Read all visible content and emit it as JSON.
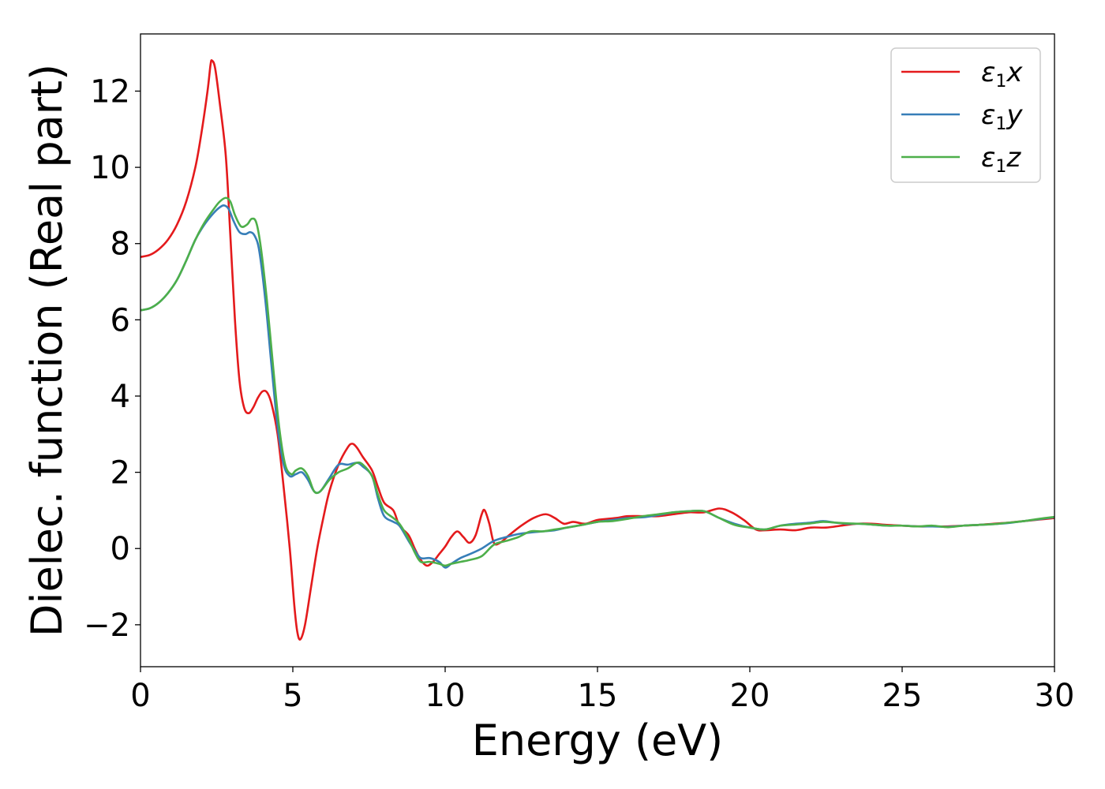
{
  "chart_data": {
    "type": "line",
    "title": "",
    "xlabel": "Energy (eV)",
    "ylabel": "Dielec. function (Real part)",
    "xlim": [
      0,
      30
    ],
    "ylim": [
      -3.1,
      13.5
    ],
    "xticks": [
      0,
      5,
      10,
      15,
      20,
      25,
      30
    ],
    "xtick_labels": [
      "0",
      "5",
      "10",
      "15",
      "20",
      "25",
      "30"
    ],
    "yticks": [
      -2,
      0,
      2,
      4,
      6,
      8,
      10,
      12
    ],
    "ytick_labels": [
      "−2",
      "0",
      "2",
      "4",
      "6",
      "8",
      "10",
      "12"
    ],
    "grid": false,
    "legend_position": "top-right",
    "series": [
      {
        "name": "ε₁x",
        "legend": {
          "symbol": "ε",
          "sub": "1",
          "axis": "x"
        },
        "color": "#e41a1c",
        "points": [
          [
            0,
            7.65
          ],
          [
            0.3,
            7.7
          ],
          [
            0.6,
            7.85
          ],
          [
            0.9,
            8.1
          ],
          [
            1.2,
            8.5
          ],
          [
            1.5,
            9.1
          ],
          [
            1.8,
            10.0
          ],
          [
            2.0,
            10.9
          ],
          [
            2.2,
            12.0
          ],
          [
            2.3,
            12.7
          ],
          [
            2.35,
            12.8
          ],
          [
            2.45,
            12.6
          ],
          [
            2.6,
            11.7
          ],
          [
            2.8,
            10.3
          ],
          [
            2.95,
            8.2
          ],
          [
            3.1,
            6.0
          ],
          [
            3.25,
            4.4
          ],
          [
            3.4,
            3.7
          ],
          [
            3.55,
            3.55
          ],
          [
            3.7,
            3.7
          ],
          [
            3.85,
            3.95
          ],
          [
            4.0,
            4.12
          ],
          [
            4.15,
            4.1
          ],
          [
            4.3,
            3.8
          ],
          [
            4.5,
            3.0
          ],
          [
            4.7,
            1.6
          ],
          [
            4.9,
            0.0
          ],
          [
            5.05,
            -1.5
          ],
          [
            5.15,
            -2.2
          ],
          [
            5.25,
            -2.38
          ],
          [
            5.4,
            -2.0
          ],
          [
            5.6,
            -1.0
          ],
          [
            5.8,
            0.0
          ],
          [
            6.0,
            0.8
          ],
          [
            6.2,
            1.5
          ],
          [
            6.5,
            2.2
          ],
          [
            6.8,
            2.65
          ],
          [
            6.95,
            2.75
          ],
          [
            7.1,
            2.65
          ],
          [
            7.3,
            2.4
          ],
          [
            7.6,
            2.05
          ],
          [
            7.8,
            1.6
          ],
          [
            8.0,
            1.2
          ],
          [
            8.3,
            1.0
          ],
          [
            8.5,
            0.6
          ],
          [
            8.8,
            0.35
          ],
          [
            9.0,
            0.0
          ],
          [
            9.2,
            -0.3
          ],
          [
            9.4,
            -0.45
          ],
          [
            9.6,
            -0.35
          ],
          [
            9.8,
            -0.15
          ],
          [
            10.0,
            0.05
          ],
          [
            10.2,
            0.3
          ],
          [
            10.4,
            0.45
          ],
          [
            10.6,
            0.3
          ],
          [
            10.8,
            0.15
          ],
          [
            11.0,
            0.35
          ],
          [
            11.2,
            0.9
          ],
          [
            11.3,
            1.0
          ],
          [
            11.45,
            0.65
          ],
          [
            11.6,
            0.15
          ],
          [
            11.8,
            0.15
          ],
          [
            12.1,
            0.35
          ],
          [
            12.5,
            0.6
          ],
          [
            12.9,
            0.8
          ],
          [
            13.3,
            0.9
          ],
          [
            13.6,
            0.8
          ],
          [
            13.9,
            0.65
          ],
          [
            14.2,
            0.7
          ],
          [
            14.6,
            0.65
          ],
          [
            15.0,
            0.75
          ],
          [
            15.6,
            0.8
          ],
          [
            16.0,
            0.85
          ],
          [
            16.5,
            0.85
          ],
          [
            17.0,
            0.85
          ],
          [
            17.5,
            0.9
          ],
          [
            18.0,
            0.95
          ],
          [
            18.5,
            0.95
          ],
          [
            19.0,
            1.05
          ],
          [
            19.4,
            0.95
          ],
          [
            19.8,
            0.75
          ],
          [
            20.2,
            0.5
          ],
          [
            20.5,
            0.48
          ],
          [
            21.0,
            0.5
          ],
          [
            21.5,
            0.48
          ],
          [
            22.0,
            0.55
          ],
          [
            22.5,
            0.55
          ],
          [
            23.0,
            0.6
          ],
          [
            23.5,
            0.65
          ],
          [
            24.0,
            0.65
          ],
          [
            24.5,
            0.62
          ],
          [
            25.0,
            0.6
          ],
          [
            25.5,
            0.58
          ],
          [
            26.0,
            0.58
          ],
          [
            26.5,
            0.58
          ],
          [
            27.0,
            0.6
          ],
          [
            27.5,
            0.62
          ],
          [
            28.0,
            0.65
          ],
          [
            28.5,
            0.68
          ],
          [
            29.0,
            0.72
          ],
          [
            29.5,
            0.76
          ],
          [
            30.0,
            0.8
          ]
        ]
      },
      {
        "name": "ε₁y",
        "legend": {
          "symbol": "ε",
          "sub": "1",
          "axis": "y"
        },
        "color": "#377eb8",
        "points": [
          [
            0,
            6.25
          ],
          [
            0.3,
            6.3
          ],
          [
            0.6,
            6.45
          ],
          [
            0.9,
            6.7
          ],
          [
            1.2,
            7.05
          ],
          [
            1.5,
            7.55
          ],
          [
            1.8,
            8.1
          ],
          [
            2.1,
            8.5
          ],
          [
            2.4,
            8.8
          ],
          [
            2.6,
            8.95
          ],
          [
            2.75,
            9.0
          ],
          [
            2.9,
            8.9
          ],
          [
            3.05,
            8.6
          ],
          [
            3.25,
            8.3
          ],
          [
            3.45,
            8.25
          ],
          [
            3.6,
            8.3
          ],
          [
            3.75,
            8.2
          ],
          [
            3.9,
            7.8
          ],
          [
            4.1,
            6.5
          ],
          [
            4.3,
            4.8
          ],
          [
            4.5,
            3.2
          ],
          [
            4.7,
            2.2
          ],
          [
            4.9,
            1.9
          ],
          [
            5.1,
            1.95
          ],
          [
            5.3,
            2.0
          ],
          [
            5.5,
            1.8
          ],
          [
            5.7,
            1.5
          ],
          [
            5.9,
            1.5
          ],
          [
            6.2,
            1.85
          ],
          [
            6.5,
            2.2
          ],
          [
            6.8,
            2.2
          ],
          [
            7.1,
            2.25
          ],
          [
            7.3,
            2.15
          ],
          [
            7.6,
            1.9
          ],
          [
            7.8,
            1.3
          ],
          [
            8.0,
            0.85
          ],
          [
            8.3,
            0.7
          ],
          [
            8.5,
            0.6
          ],
          [
            8.8,
            0.2
          ],
          [
            9.0,
            -0.05
          ],
          [
            9.2,
            -0.25
          ],
          [
            9.5,
            -0.25
          ],
          [
            9.8,
            -0.35
          ],
          [
            10.0,
            -0.5
          ],
          [
            10.2,
            -0.4
          ],
          [
            10.5,
            -0.25
          ],
          [
            10.8,
            -0.15
          ],
          [
            11.2,
            0.0
          ],
          [
            11.6,
            0.2
          ],
          [
            12.0,
            0.3
          ],
          [
            12.4,
            0.38
          ],
          [
            12.8,
            0.42
          ],
          [
            13.2,
            0.45
          ],
          [
            13.6,
            0.48
          ],
          [
            14.0,
            0.55
          ],
          [
            14.5,
            0.62
          ],
          [
            15.0,
            0.7
          ],
          [
            15.5,
            0.75
          ],
          [
            16.0,
            0.8
          ],
          [
            16.5,
            0.82
          ],
          [
            17.0,
            0.88
          ],
          [
            17.5,
            0.95
          ],
          [
            18.0,
            0.98
          ],
          [
            18.5,
            0.98
          ],
          [
            19.0,
            0.8
          ],
          [
            19.5,
            0.65
          ],
          [
            20.0,
            0.55
          ],
          [
            20.5,
            0.5
          ],
          [
            21.0,
            0.6
          ],
          [
            21.5,
            0.65
          ],
          [
            22.0,
            0.68
          ],
          [
            22.4,
            0.72
          ],
          [
            22.8,
            0.68
          ],
          [
            23.2,
            0.65
          ],
          [
            23.6,
            0.65
          ],
          [
            24.0,
            0.63
          ],
          [
            24.5,
            0.6
          ],
          [
            25.0,
            0.6
          ],
          [
            25.5,
            0.58
          ],
          [
            26.0,
            0.58
          ],
          [
            26.5,
            0.57
          ],
          [
            27.0,
            0.6
          ],
          [
            27.5,
            0.62
          ],
          [
            28.0,
            0.64
          ],
          [
            28.5,
            0.67
          ],
          [
            29.0,
            0.72
          ],
          [
            29.5,
            0.77
          ],
          [
            30.0,
            0.82
          ]
        ]
      },
      {
        "name": "ε₁z",
        "legend": {
          "symbol": "ε",
          "sub": "1",
          "axis": "z"
        },
        "color": "#4daf4a",
        "points": [
          [
            0,
            6.25
          ],
          [
            0.3,
            6.3
          ],
          [
            0.6,
            6.45
          ],
          [
            0.9,
            6.7
          ],
          [
            1.2,
            7.05
          ],
          [
            1.5,
            7.55
          ],
          [
            1.8,
            8.1
          ],
          [
            2.1,
            8.55
          ],
          [
            2.4,
            8.9
          ],
          [
            2.6,
            9.1
          ],
          [
            2.8,
            9.2
          ],
          [
            2.95,
            9.1
          ],
          [
            3.1,
            8.75
          ],
          [
            3.3,
            8.45
          ],
          [
            3.5,
            8.5
          ],
          [
            3.65,
            8.65
          ],
          [
            3.8,
            8.55
          ],
          [
            3.95,
            7.9
          ],
          [
            4.15,
            6.5
          ],
          [
            4.35,
            4.8
          ],
          [
            4.55,
            3.2
          ],
          [
            4.75,
            2.2
          ],
          [
            4.95,
            1.95
          ],
          [
            5.1,
            2.05
          ],
          [
            5.3,
            2.1
          ],
          [
            5.5,
            1.9
          ],
          [
            5.7,
            1.5
          ],
          [
            5.9,
            1.5
          ],
          [
            6.2,
            1.8
          ],
          [
            6.5,
            2.0
          ],
          [
            6.8,
            2.1
          ],
          [
            7.1,
            2.25
          ],
          [
            7.3,
            2.2
          ],
          [
            7.6,
            1.9
          ],
          [
            7.8,
            1.4
          ],
          [
            8.0,
            1.0
          ],
          [
            8.3,
            0.8
          ],
          [
            8.5,
            0.65
          ],
          [
            8.8,
            0.25
          ],
          [
            9.0,
            -0.1
          ],
          [
            9.2,
            -0.35
          ],
          [
            9.5,
            -0.35
          ],
          [
            9.8,
            -0.4
          ],
          [
            10.0,
            -0.45
          ],
          [
            10.2,
            -0.4
          ],
          [
            10.5,
            -0.35
          ],
          [
            10.8,
            -0.3
          ],
          [
            11.2,
            -0.2
          ],
          [
            11.6,
            0.1
          ],
          [
            12.0,
            0.2
          ],
          [
            12.4,
            0.3
          ],
          [
            12.8,
            0.45
          ],
          [
            13.2,
            0.45
          ],
          [
            13.6,
            0.5
          ],
          [
            14.0,
            0.55
          ],
          [
            14.5,
            0.62
          ],
          [
            15.0,
            0.7
          ],
          [
            15.5,
            0.72
          ],
          [
            16.0,
            0.78
          ],
          [
            16.5,
            0.85
          ],
          [
            17.0,
            0.9
          ],
          [
            17.5,
            0.95
          ],
          [
            18.0,
            0.98
          ],
          [
            18.5,
            0.98
          ],
          [
            19.0,
            0.8
          ],
          [
            19.5,
            0.62
          ],
          [
            20.0,
            0.55
          ],
          [
            20.5,
            0.5
          ],
          [
            21.0,
            0.6
          ],
          [
            21.5,
            0.63
          ],
          [
            22.0,
            0.66
          ],
          [
            22.4,
            0.7
          ],
          [
            22.8,
            0.68
          ],
          [
            23.2,
            0.66
          ],
          [
            23.6,
            0.65
          ],
          [
            24.0,
            0.63
          ],
          [
            24.5,
            0.6
          ],
          [
            25.0,
            0.6
          ],
          [
            25.5,
            0.58
          ],
          [
            26.0,
            0.6
          ],
          [
            26.5,
            0.56
          ],
          [
            27.0,
            0.6
          ],
          [
            27.5,
            0.62
          ],
          [
            28.0,
            0.64
          ],
          [
            28.5,
            0.68
          ],
          [
            29.0,
            0.72
          ],
          [
            29.5,
            0.78
          ],
          [
            30.0,
            0.83
          ]
        ]
      }
    ]
  }
}
